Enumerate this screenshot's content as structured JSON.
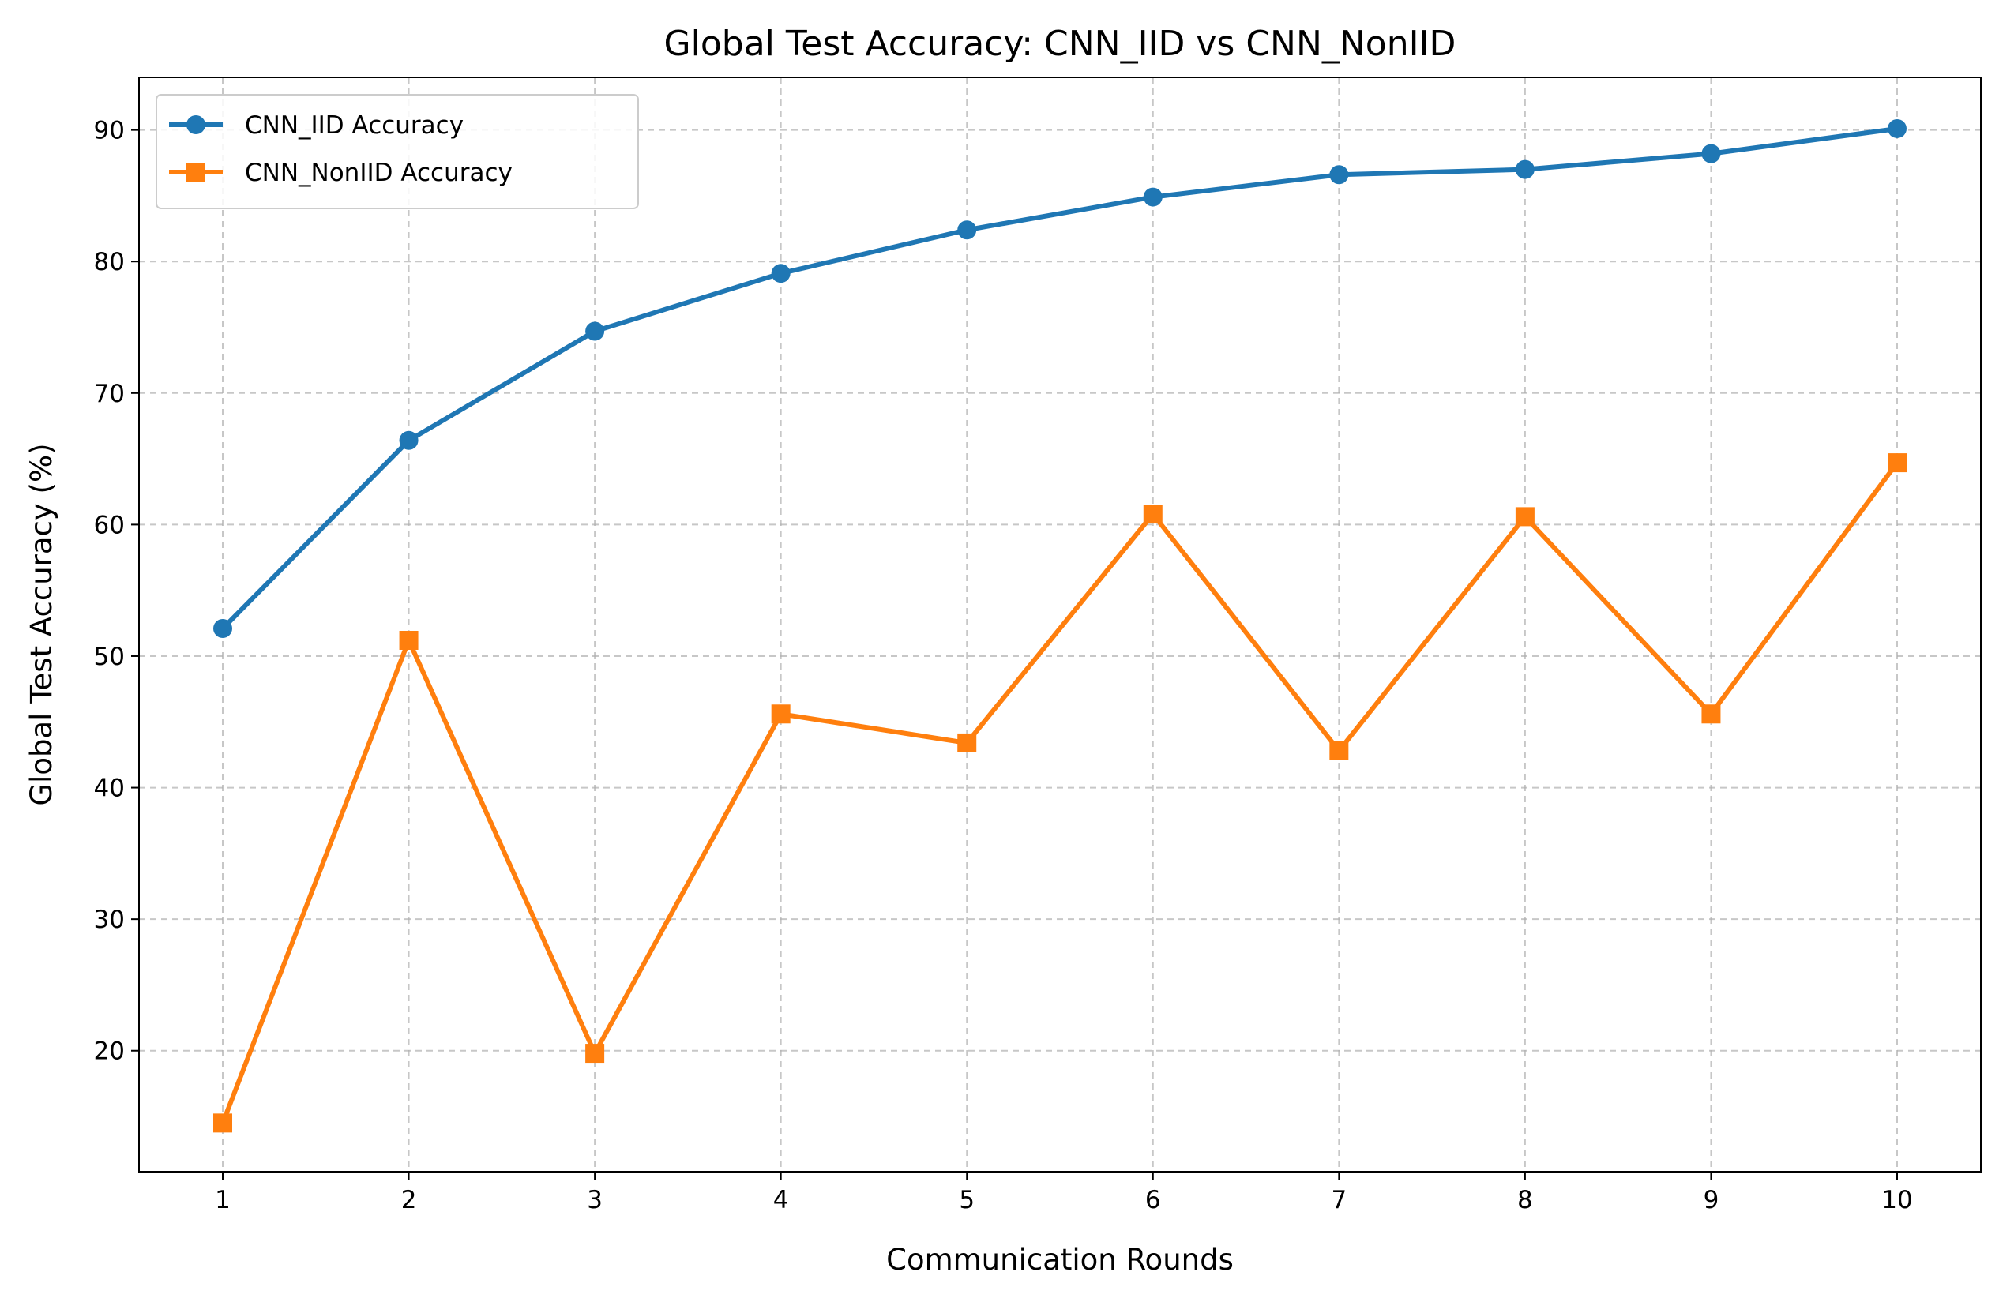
{
  "chart_data": {
    "type": "line",
    "title": "Global Test Accuracy: CNN_IID vs CNN_NonIID",
    "xlabel": "Communication Rounds",
    "ylabel": "Global Test Accuracy (%)",
    "x": [
      1,
      2,
      3,
      4,
      5,
      6,
      7,
      8,
      9,
      10
    ],
    "x_ticks": [
      "1",
      "2",
      "3",
      "4",
      "5",
      "6",
      "7",
      "8",
      "9",
      "10"
    ],
    "xlim": [
      0.55,
      10.45
    ],
    "ylim": [
      10.8,
      94.0
    ],
    "y_ticks": [
      20,
      30,
      40,
      50,
      60,
      70,
      80,
      90
    ],
    "grid": true,
    "legend_position": "top-left",
    "series": [
      {
        "name": "CNN_IID Accuracy",
        "color": "#1f77b4",
        "marker": "circle",
        "values": [
          52.1,
          66.4,
          74.7,
          79.1,
          82.4,
          84.9,
          86.6,
          87.0,
          88.2,
          90.1
        ]
      },
      {
        "name": "CNN_NonIID Accuracy",
        "color": "#ff7f0e",
        "marker": "square",
        "values": [
          14.5,
          51.2,
          19.8,
          45.6,
          43.4,
          60.8,
          42.8,
          60.6,
          45.6,
          64.7
        ]
      }
    ]
  }
}
